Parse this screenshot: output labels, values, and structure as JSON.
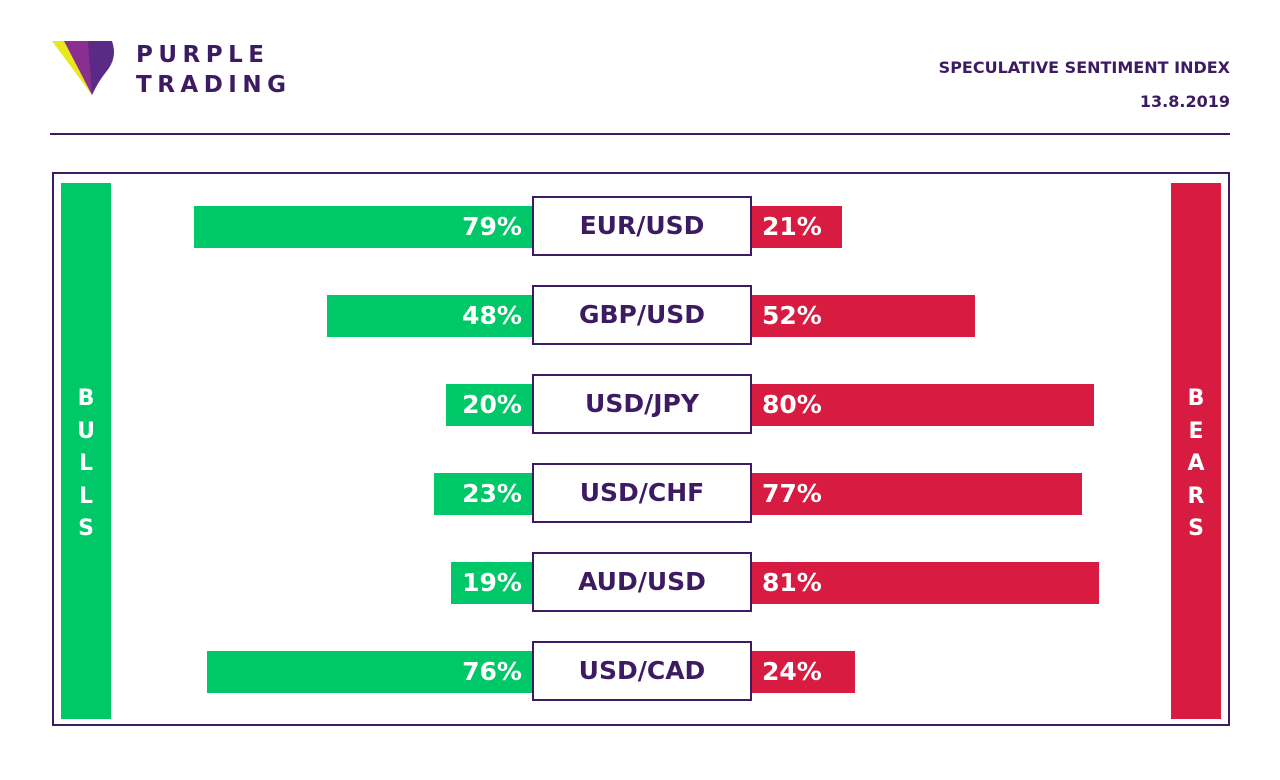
{
  "brand": {
    "line1": "PURPLE",
    "line2": "TRADING"
  },
  "header": {
    "title": "SPECULATIVE SENTIMENT INDEX",
    "date": "13.8.2019"
  },
  "labels": {
    "bulls": "BULLS",
    "bears": "BEARS"
  },
  "colors": {
    "bulls": "#00c767",
    "bears": "#d81b40",
    "accent": "#3d1b63",
    "logo_yellow": "#e8e81a"
  },
  "chart_data": {
    "type": "bar",
    "categories": [
      "EUR/USD",
      "GBP/USD",
      "USD/JPY",
      "USD/CHF",
      "AUD/USD",
      "USD/CAD"
    ],
    "series": [
      {
        "name": "BULLS",
        "values": [
          79,
          48,
          20,
          23,
          19,
          76
        ],
        "labels": [
          "79%",
          "48%",
          "20%",
          "23%",
          "19%",
          "76%"
        ]
      },
      {
        "name": "BEARS",
        "values": [
          21,
          52,
          80,
          77,
          81,
          24
        ],
        "labels": [
          "21%",
          "52%",
          "80%",
          "77%",
          "81%",
          "24%"
        ]
      }
    ]
  }
}
